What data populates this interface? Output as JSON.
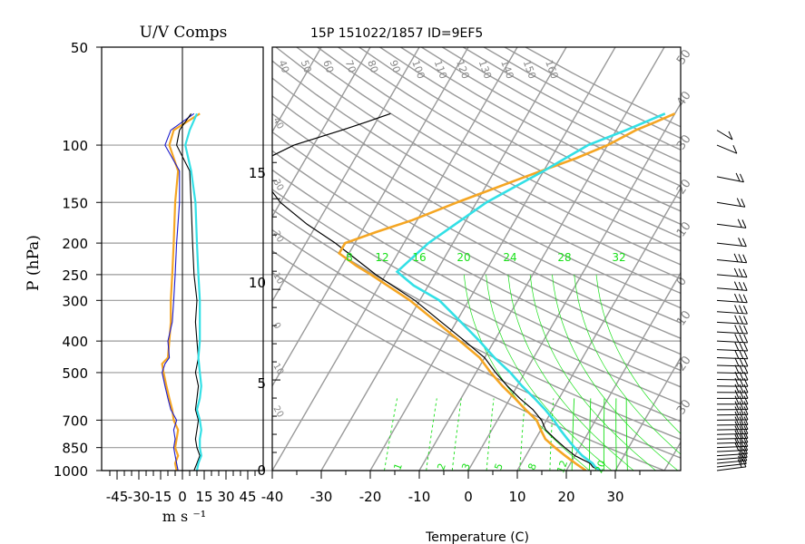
{
  "figure": {
    "title": "15P 151022/1857 ID=9EF5",
    "left_panel_title": "U/V Comps",
    "left_ylabel": "P (hPa)",
    "left_xlabel": "m s ⁻¹",
    "main_xlabel": "Temperature (C)"
  },
  "colors": {
    "grid": "#9a9a9a",
    "temperature": "#000000",
    "virtual_temperature": "#f5a623",
    "parcel": "#33e0e6",
    "mixing_ratio": "#18e018",
    "u_wind": "#f5a623",
    "v_wind": "#1a1acc",
    "u_wind_alt": "#000000",
    "v_wind_alt": "#33e0e6"
  },
  "chart_data": [
    {
      "type": "line",
      "title": "U/V Comps",
      "xlabel": "m s ⁻¹",
      "ylabel": "P (hPa)",
      "xlim": [
        -50,
        50
      ],
      "x_ticks": [
        -45,
        -30,
        -15,
        0,
        15,
        30,
        45
      ],
      "y_scale": "log",
      "ylim": [
        1000,
        50
      ],
      "y_ticks": [
        50,
        100,
        150,
        200,
        250,
        300,
        400,
        500,
        700,
        850,
        1000
      ],
      "grid": "horizontal",
      "series": [
        {
          "key": "u",
          "color": "#f5a623",
          "p": [
            1000,
            950,
            900,
            850,
            800,
            750,
            700,
            650,
            600,
            550,
            500,
            470,
            450,
            400,
            350,
            300,
            250,
            200,
            150,
            120,
            100,
            90,
            80
          ],
          "v": [
            -4,
            -5,
            -3,
            -5,
            -4,
            -3,
            -6,
            -7,
            -9,
            -11,
            -13,
            -14,
            -10,
            -9,
            -8,
            -8,
            -7,
            -6,
            -5,
            -3,
            -9,
            -6,
            12
          ]
        },
        {
          "key": "v",
          "color": "#1a1acc",
          "p": [
            1000,
            950,
            900,
            850,
            800,
            750,
            700,
            650,
            600,
            550,
            500,
            470,
            450,
            400,
            350,
            300,
            250,
            200,
            150,
            120,
            100,
            90,
            80
          ],
          "v": [
            -3,
            -4,
            -5,
            -6,
            -5,
            -6,
            -4,
            -8,
            -10,
            -12,
            -14,
            -12,
            -9,
            -10,
            -7,
            -6,
            -5,
            -4,
            -2,
            -2,
            -12,
            -8,
            8
          ]
        },
        {
          "key": "u2",
          "color": "#000000",
          "p": [
            1000,
            950,
            900,
            850,
            800,
            750,
            700,
            650,
            600,
            550,
            500,
            450,
            400,
            350,
            300,
            250,
            200,
            150,
            120,
            100,
            90,
            80
          ],
          "v": [
            8,
            10,
            12,
            10,
            9,
            10,
            11,
            9,
            10,
            11,
            9,
            11,
            10,
            9,
            10,
            8,
            7,
            6,
            5,
            -4,
            -2,
            6
          ]
        },
        {
          "key": "v2",
          "color": "#33e0e6",
          "p": [
            1000,
            950,
            900,
            850,
            800,
            750,
            700,
            650,
            600,
            550,
            500,
            450,
            400,
            350,
            300,
            250,
            200,
            150,
            120,
            100,
            90,
            80
          ],
          "v": [
            10,
            11,
            13,
            12,
            12,
            13,
            12,
            10,
            12,
            13,
            12,
            11,
            12,
            12,
            12,
            11,
            10,
            9,
            6,
            2,
            5,
            10
          ]
        }
      ]
    },
    {
      "type": "line",
      "title": "15P 151022/1857 ID=9EF5",
      "xlabel": "Temperature (C)",
      "x_ticks": [
        -40,
        -30,
        -20,
        -10,
        0,
        10,
        20,
        30
      ],
      "xlim": [
        -43,
        40
      ],
      "height_ticks_km": [
        0,
        5,
        10,
        15
      ],
      "ylim_hPa": [
        1000,
        50
      ],
      "mixing_ratio_labels": [
        "8",
        "12",
        "16",
        "20",
        "24",
        "28",
        "32"
      ],
      "mixing_ratio_bottom_labels": [
        "1",
        "2",
        "3",
        "5",
        "8",
        "12",
        "20"
      ],
      "theta_labels": [
        "40",
        "50",
        "60",
        "70",
        "80",
        "90",
        "100",
        "110",
        "120",
        "130",
        "140",
        "150",
        "160"
      ],
      "right_labels": [
        "50",
        "40",
        "30",
        "20",
        "10",
        "0",
        "10",
        "20",
        "30"
      ],
      "left_labels": [
        "40",
        "30",
        "20",
        "10",
        "0",
        "10",
        "20",
        "30"
      ],
      "series": [
        {
          "key": "temperature",
          "color": "#000000",
          "p": [
            1000,
            975,
            950,
            925,
            900,
            850,
            800,
            750,
            700,
            650,
            600,
            550,
            500,
            450,
            400,
            350,
            300,
            250,
            200,
            175,
            150,
            125,
            110,
            100,
            90,
            85,
            80
          ],
          "t": [
            27,
            25,
            24,
            22,
            20,
            17,
            14,
            11,
            9,
            6,
            2,
            -2,
            -6,
            -10,
            -16,
            -23,
            -31,
            -42,
            -54,
            -62,
            -70,
            -77,
            -78,
            -74,
            -66,
            -62,
            -58
          ]
        },
        {
          "key": "virtual_temperature",
          "color": "#f5a623",
          "p": [
            1000,
            975,
            950,
            925,
            900,
            850,
            800,
            750,
            700,
            650,
            600,
            550,
            500,
            450,
            400,
            350,
            300,
            250,
            235,
            215,
            200,
            185,
            170,
            150,
            125,
            110,
            100,
            90,
            85,
            80
          ],
          "t": [
            24,
            22.5,
            21,
            19.5,
            18,
            15,
            12,
            10,
            8,
            4.5,
            1,
            -3,
            -7,
            -11,
            -17,
            -24,
            -32,
            -43,
            -47,
            -52,
            -52,
            -47,
            -41,
            -34,
            -23,
            -15,
            -10,
            -6,
            -3,
            0
          ]
        },
        {
          "key": "parcel",
          "color": "#33e0e6",
          "p": [
            1000,
            975,
            950,
            925,
            900,
            850,
            800,
            750,
            700,
            650,
            600,
            550,
            500,
            450,
            400,
            350,
            300,
            270,
            245,
            200,
            150,
            120,
            100,
            90,
            80
          ],
          "t": [
            27,
            25.5,
            24.5,
            23,
            21.5,
            19,
            16.5,
            14,
            11.5,
            8.5,
            5,
            1,
            -3,
            -8,
            -13,
            -19,
            -26,
            -33,
            -38,
            -35,
            -28,
            -20,
            -14,
            -8,
            -2
          ]
        }
      ]
    },
    {
      "type": "wind_barbs",
      "p": [
        1000,
        975,
        950,
        925,
        900,
        875,
        850,
        825,
        800,
        775,
        750,
        725,
        700,
        675,
        650,
        625,
        600,
        575,
        550,
        525,
        500,
        475,
        450,
        425,
        400,
        375,
        350,
        325,
        300,
        275,
        250,
        225,
        200,
        175,
        150,
        125,
        100,
        90
      ],
      "dir_deg": [
        250,
        252,
        255,
        258,
        260,
        262,
        264,
        265,
        266,
        266,
        267,
        268,
        268,
        268,
        269,
        270,
        270,
        271,
        272,
        273,
        274,
        275,
        276,
        277,
        278,
        279,
        280,
        281,
        282,
        283,
        284,
        286,
        288,
        290,
        295,
        300,
        320,
        330
      ],
      "speed_kt": [
        20,
        22,
        22,
        24,
        24,
        25,
        25,
        26,
        26,
        27,
        27,
        27,
        28,
        28,
        29,
        29,
        30,
        30,
        30,
        31,
        31,
        31,
        30,
        30,
        30,
        29,
        28,
        28,
        27,
        27,
        26,
        25,
        24,
        22,
        18,
        15,
        14,
        12
      ]
    }
  ]
}
